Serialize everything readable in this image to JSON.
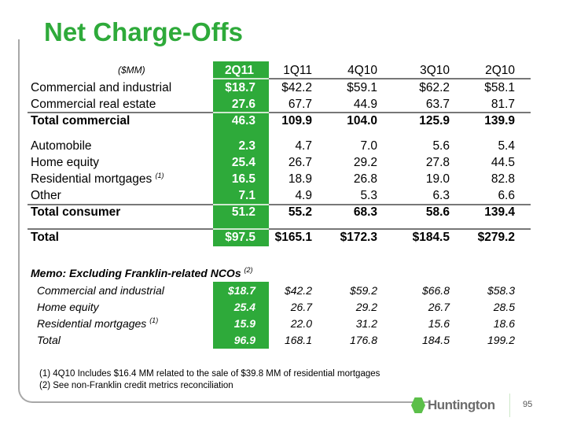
{
  "title": "Net Charge-Offs",
  "unit": "($MM)",
  "columns": [
    "2Q11",
    "1Q11",
    "4Q10",
    "3Q10",
    "2Q10"
  ],
  "rows": [
    {
      "label": "Commercial and industrial",
      "values": [
        "$18.7",
        "$42.2",
        "$59.1",
        "$62.2",
        "$58.1"
      ]
    },
    {
      "label": "Commercial real estate",
      "values": [
        "27.6",
        "67.7",
        "44.9",
        "63.7",
        "81.7"
      ]
    },
    {
      "label": "Total commercial",
      "values": [
        "46.3",
        "109.9",
        "104.0",
        "125.9",
        "139.9"
      ]
    },
    {
      "label": "Automobile",
      "values": [
        "2.3",
        "4.7",
        "7.0",
        "5.6",
        "5.4"
      ]
    },
    {
      "label": "Home equity",
      "values": [
        "25.4",
        "26.7",
        "29.2",
        "27.8",
        "44.5"
      ]
    },
    {
      "label": "Residential mortgages",
      "note": "(1)",
      "values": [
        "16.5",
        "18.9",
        "26.8",
        "19.0",
        "82.8"
      ]
    },
    {
      "label": "Other",
      "values": [
        "7.1",
        "4.9",
        "5.3",
        "6.3",
        "6.6"
      ]
    },
    {
      "label": "Total consumer",
      "values": [
        "51.2",
        "55.2",
        "68.3",
        "58.6",
        "139.4"
      ]
    },
    {
      "label": "Total",
      "values": [
        "$97.5",
        "$165.1",
        "$172.3",
        "$184.5",
        "$279.2"
      ]
    }
  ],
  "memo": {
    "title": "Memo: Excluding Franklin-related NCOs",
    "note": "(2)",
    "rows": [
      {
        "label": "Commercial and industrial",
        "values": [
          "$18.7",
          "$42.2",
          "$59.2",
          "$66.8",
          "$58.3"
        ]
      },
      {
        "label": "Home equity",
        "values": [
          "25.4",
          "26.7",
          "29.2",
          "26.7",
          "28.5"
        ]
      },
      {
        "label": "Residential mortgages",
        "note": "(1)",
        "values": [
          "15.9",
          "22.0",
          "31.2",
          "15.6",
          "18.6"
        ]
      },
      {
        "label": "Total",
        "values": [
          "96.9",
          "168.1",
          "176.8",
          "184.5",
          "199.2"
        ]
      }
    ]
  },
  "footnotes": [
    "(1)  4Q10 Includes $16.4 MM related to the sale of $39.8 MM of residential mortgages",
    "(2)  See non-Franklin credit metrics reconciliation"
  ],
  "logo": "Huntington",
  "page_number": "95",
  "colors": {
    "accent": "#2eaa3a"
  }
}
